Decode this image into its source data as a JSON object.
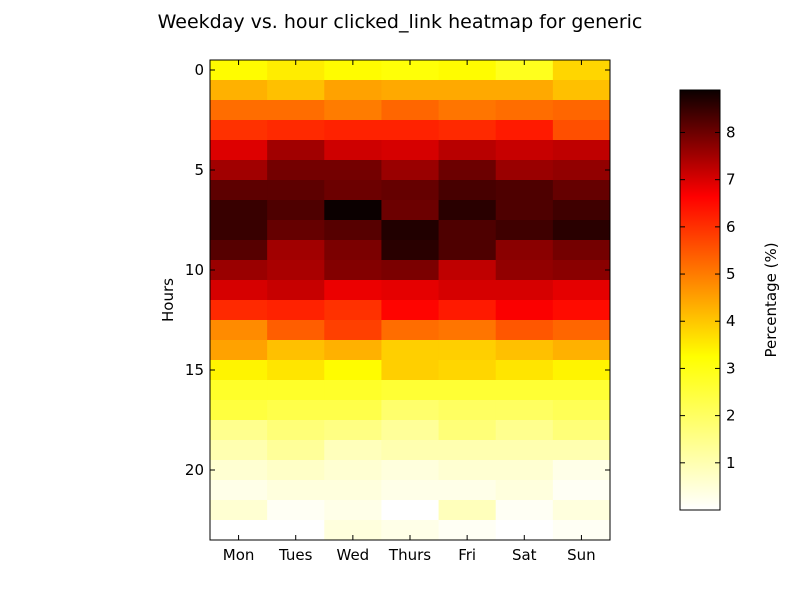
{
  "chart_data": {
    "type": "heatmap",
    "title": "Weekday vs. hour clicked_link heatmap for generic",
    "xlabel": "",
    "ylabel": "Hours",
    "x_categories": [
      "Mon",
      "Tues",
      "Wed",
      "Thurs",
      "Fri",
      "Sat",
      "Sun"
    ],
    "y_ticks": [
      0,
      5,
      10,
      15,
      20
    ],
    "colorbar": {
      "label": "Percentage (%)",
      "ticks": [
        1,
        2,
        3,
        4,
        5,
        6,
        7,
        8
      ],
      "range": [
        0.0,
        8.9
      ],
      "colormap": "hot_r"
    },
    "values": [
      [
        2.3,
        2.5,
        2.3,
        2.2,
        2.3,
        2.0,
        2.8
      ],
      [
        3.3,
        3.1,
        3.5,
        3.4,
        3.4,
        3.4,
        3.1
      ],
      [
        4.2,
        4.2,
        4.0,
        4.3,
        4.1,
        4.2,
        4.3
      ],
      [
        5.0,
        5.1,
        5.2,
        5.2,
        5.1,
        5.3,
        4.6
      ],
      [
        6.1,
        6.9,
        6.3,
        6.2,
        6.6,
        6.4,
        6.5
      ],
      [
        6.9,
        7.5,
        7.5,
        7.0,
        7.6,
        7.0,
        7.1
      ],
      [
        7.8,
        7.8,
        7.6,
        7.7,
        8.1,
        8.0,
        7.7
      ],
      [
        8.3,
        8.0,
        8.9,
        7.6,
        8.5,
        8.0,
        8.2
      ],
      [
        8.3,
        7.7,
        7.9,
        8.6,
        8.0,
        8.2,
        8.5
      ],
      [
        7.9,
        6.9,
        7.4,
        8.5,
        8.0,
        7.2,
        7.5
      ],
      [
        7.0,
        6.8,
        7.3,
        7.4,
        6.5,
        7.1,
        7.2
      ],
      [
        6.2,
        6.4,
        5.9,
        6.0,
        6.2,
        6.2,
        6.0
      ],
      [
        5.1,
        5.2,
        5.0,
        5.6,
        5.3,
        5.7,
        5.5
      ],
      [
        3.8,
        4.4,
        4.8,
        4.2,
        4.1,
        4.5,
        4.3
      ],
      [
        3.5,
        3.1,
        3.3,
        2.9,
        2.9,
        3.1,
        3.3
      ],
      [
        2.4,
        2.6,
        2.3,
        2.9,
        2.8,
        2.6,
        2.4
      ],
      [
        1.9,
        1.9,
        1.9,
        1.8,
        1.8,
        1.8,
        1.8
      ],
      [
        1.7,
        1.6,
        1.6,
        1.3,
        1.4,
        1.4,
        1.5
      ],
      [
        1.0,
        1.2,
        1.1,
        0.9,
        1.2,
        1.0,
        1.2
      ],
      [
        0.7,
        0.9,
        0.6,
        0.7,
        0.7,
        0.7,
        0.7
      ],
      [
        0.4,
        0.5,
        0.4,
        0.3,
        0.4,
        0.4,
        0.2
      ],
      [
        0.2,
        0.3,
        0.3,
        0.2,
        0.2,
        0.3,
        0.1
      ],
      [
        0.4,
        0.1,
        0.2,
        0.0,
        0.6,
        0.1,
        0.3
      ],
      [
        0.0,
        0.0,
        0.3,
        0.2,
        0.1,
        0.0,
        0.1
      ]
    ]
  }
}
